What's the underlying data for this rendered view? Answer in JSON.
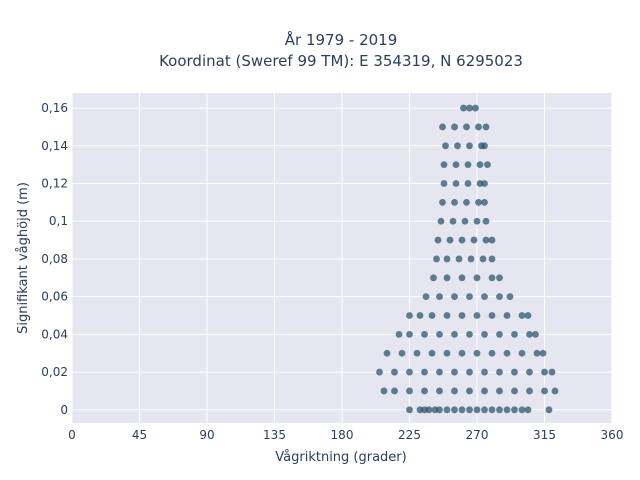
{
  "chart_data": {
    "type": "scatter",
    "title_line1": "År 1979 - 2019",
    "title_line2": "Koordinat (Sweref 99 TM): E 354319, N 6295023",
    "xlabel": "Vågriktning (grader)",
    "ylabel": "Signifikant våghöjd (m)",
    "xlim": [
      0,
      360
    ],
    "ylim": [
      -0.007,
      0.168
    ],
    "x_ticks": [
      0,
      45,
      90,
      135,
      180,
      225,
      270,
      315,
      360
    ],
    "x_tick_labels": [
      "0",
      "45",
      "90",
      "135",
      "180",
      "225",
      "270",
      "315",
      "360"
    ],
    "y_ticks": [
      0,
      0.02,
      0.04,
      0.06,
      0.08,
      0.1,
      0.12,
      0.14,
      0.16
    ],
    "y_tick_labels": [
      "0",
      "0,02",
      "0,04",
      "0,06",
      "0,08",
      "0,1",
      "0,12",
      "0,14",
      "0,16"
    ],
    "grid": true,
    "legend": "none",
    "marker_color": "#2e5670",
    "plot_background": "#e5e6ef",
    "series": [
      {
        "points": [
          [
            225,
            0
          ],
          [
            232,
            0
          ],
          [
            235,
            0
          ],
          [
            238,
            0
          ],
          [
            242,
            0
          ],
          [
            245,
            0
          ],
          [
            250,
            0
          ],
          [
            255,
            0
          ],
          [
            260,
            0
          ],
          [
            265,
            0
          ],
          [
            270,
            0
          ],
          [
            275,
            0
          ],
          [
            280,
            0
          ],
          [
            285,
            0
          ],
          [
            290,
            0
          ],
          [
            295,
            0
          ],
          [
            300,
            0
          ],
          [
            304,
            0
          ],
          [
            318,
            0
          ],
          [
            208,
            0.01
          ],
          [
            215,
            0.01
          ],
          [
            225,
            0.01
          ],
          [
            235,
            0.01
          ],
          [
            245,
            0.01
          ],
          [
            255,
            0.01
          ],
          [
            265,
            0.01
          ],
          [
            275,
            0.01
          ],
          [
            285,
            0.01
          ],
          [
            295,
            0.01
          ],
          [
            305,
            0.01
          ],
          [
            315,
            0.01
          ],
          [
            322,
            0.01
          ],
          [
            205,
            0.02
          ],
          [
            215,
            0.02
          ],
          [
            225,
            0.02
          ],
          [
            235,
            0.02
          ],
          [
            245,
            0.02
          ],
          [
            255,
            0.02
          ],
          [
            265,
            0.02
          ],
          [
            275,
            0.02
          ],
          [
            285,
            0.02
          ],
          [
            295,
            0.02
          ],
          [
            305,
            0.02
          ],
          [
            315,
            0.02
          ],
          [
            320,
            0.02
          ],
          [
            210,
            0.03
          ],
          [
            220,
            0.03
          ],
          [
            230,
            0.03
          ],
          [
            240,
            0.03
          ],
          [
            250,
            0.03
          ],
          [
            260,
            0.03
          ],
          [
            270,
            0.03
          ],
          [
            280,
            0.03
          ],
          [
            290,
            0.03
          ],
          [
            300,
            0.03
          ],
          [
            310,
            0.03
          ],
          [
            314,
            0.03
          ],
          [
            218,
            0.04
          ],
          [
            225,
            0.04
          ],
          [
            235,
            0.04
          ],
          [
            245,
            0.04
          ],
          [
            255,
            0.04
          ],
          [
            265,
            0.04
          ],
          [
            275,
            0.04
          ],
          [
            285,
            0.04
          ],
          [
            295,
            0.04
          ],
          [
            305,
            0.04
          ],
          [
            309,
            0.04
          ],
          [
            225,
            0.05
          ],
          [
            232,
            0.05
          ],
          [
            240,
            0.05
          ],
          [
            250,
            0.05
          ],
          [
            260,
            0.05
          ],
          [
            270,
            0.05
          ],
          [
            280,
            0.05
          ],
          [
            290,
            0.05
          ],
          [
            300,
            0.05
          ],
          [
            304,
            0.05
          ],
          [
            236,
            0.06
          ],
          [
            245,
            0.06
          ],
          [
            255,
            0.06
          ],
          [
            265,
            0.06
          ],
          [
            275,
            0.06
          ],
          [
            285,
            0.06
          ],
          [
            292,
            0.06
          ],
          [
            241,
            0.07
          ],
          [
            250,
            0.07
          ],
          [
            260,
            0.07
          ],
          [
            270,
            0.07
          ],
          [
            280,
            0.07
          ],
          [
            285,
            0.07
          ],
          [
            243,
            0.08
          ],
          [
            250,
            0.08
          ],
          [
            258,
            0.08
          ],
          [
            266,
            0.08
          ],
          [
            274,
            0.08
          ],
          [
            280,
            0.08
          ],
          [
            244,
            0.09
          ],
          [
            252,
            0.09
          ],
          [
            260,
            0.09
          ],
          [
            268,
            0.09
          ],
          [
            276,
            0.09
          ],
          [
            280,
            0.09
          ],
          [
            246,
            0.1
          ],
          [
            254,
            0.1
          ],
          [
            262,
            0.1
          ],
          [
            270,
            0.1
          ],
          [
            276,
            0.1
          ],
          [
            247,
            0.11
          ],
          [
            255,
            0.11
          ],
          [
            263,
            0.11
          ],
          [
            271,
            0.11
          ],
          [
            275,
            0.11
          ],
          [
            248,
            0.12
          ],
          [
            256,
            0.12
          ],
          [
            264,
            0.12
          ],
          [
            272,
            0.12
          ],
          [
            275,
            0.12
          ],
          [
            248,
            0.13
          ],
          [
            256,
            0.13
          ],
          [
            264,
            0.13
          ],
          [
            272,
            0.13
          ],
          [
            277,
            0.13
          ],
          [
            249,
            0.14
          ],
          [
            257,
            0.14
          ],
          [
            265,
            0.14
          ],
          [
            273,
            0.14
          ],
          [
            275,
            0.14
          ],
          [
            247,
            0.15
          ],
          [
            255,
            0.15
          ],
          [
            263,
            0.15
          ],
          [
            271,
            0.15
          ],
          [
            276,
            0.15
          ],
          [
            261,
            0.16
          ],
          [
            265,
            0.16
          ],
          [
            269,
            0.16
          ]
        ]
      }
    ]
  }
}
